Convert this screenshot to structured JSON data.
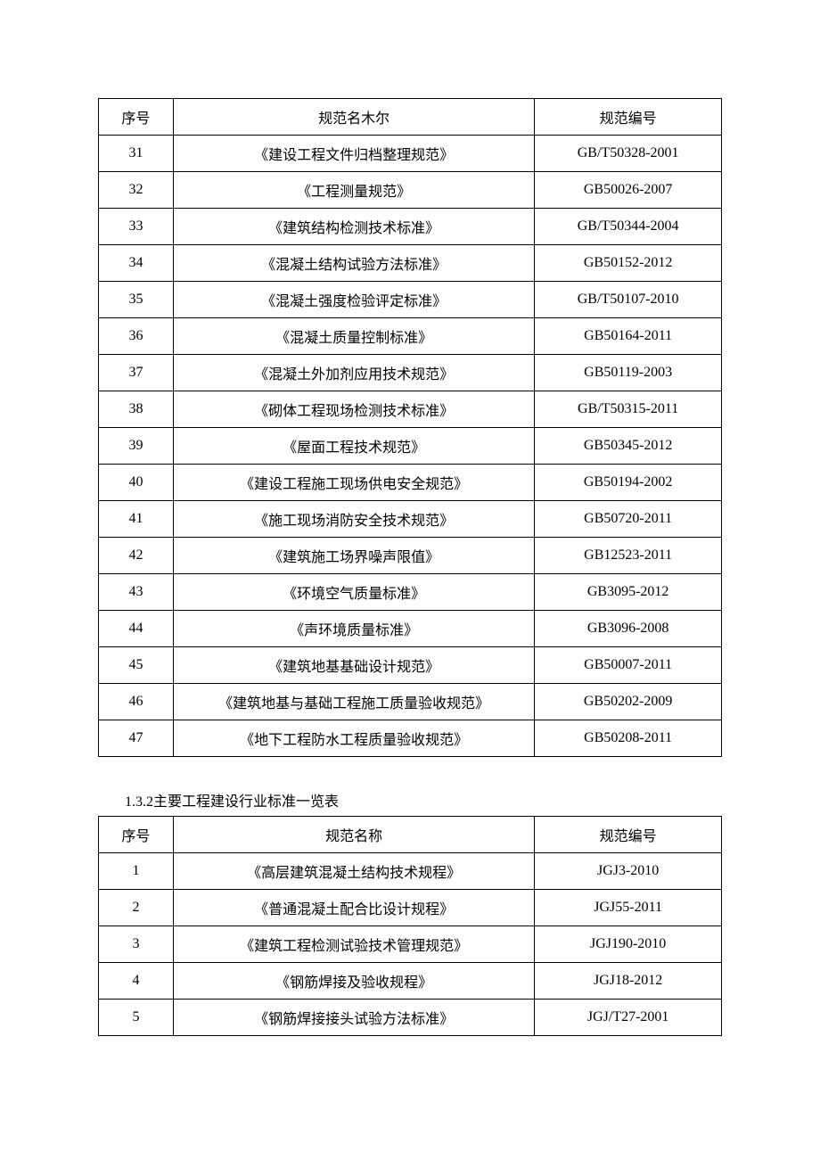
{
  "table1": {
    "headers": {
      "seq": "序号",
      "name": "规范名木尔",
      "code": "规范编号"
    },
    "rows": [
      {
        "seq": "31",
        "name": "《建设工程文件归档整理规范》",
        "code": "GB/T50328-2001"
      },
      {
        "seq": "32",
        "name": "《工程测量规范》",
        "code": "GB50026-2007"
      },
      {
        "seq": "33",
        "name": "《建筑结构检测技术标准》",
        "code": "GB/T50344-2004"
      },
      {
        "seq": "34",
        "name": "《混凝土结构试验方法标准》",
        "code": "GB50152-2012"
      },
      {
        "seq": "35",
        "name": "《混凝土强度检验评定标准》",
        "code": "GB/T50107-2010"
      },
      {
        "seq": "36",
        "name": "《混凝土质量控制标准》",
        "code": "GB50164-2011"
      },
      {
        "seq": "37",
        "name": "《混凝土外加剂应用技术规范》",
        "code": "GB50119-2003"
      },
      {
        "seq": "38",
        "name": "《砌体工程现场检测技术标准》",
        "code": "GB/T50315-2011"
      },
      {
        "seq": "39",
        "name": "《屋面工程技术规范》",
        "code": "GB50345-2012"
      },
      {
        "seq": "40",
        "name": "《建设工程施工现场供电安全规范》",
        "code": "GB50194-2002"
      },
      {
        "seq": "41",
        "name": "《施工现场消防安全技术规范》",
        "code": "GB50720-2011"
      },
      {
        "seq": "42",
        "name": "《建筑施工场界噪声限值》",
        "code": "GB12523-2011"
      },
      {
        "seq": "43",
        "name": "《环境空气质量标准》",
        "code": "GB3095-2012"
      },
      {
        "seq": "44",
        "name": "《声环境质量标准》",
        "code": "GB3096-2008"
      },
      {
        "seq": "45",
        "name": "《建筑地基基础设计规范》",
        "code": "GB50007-2011"
      },
      {
        "seq": "46",
        "name": "《建筑地基与基础工程施工质量验收规范》",
        "code": "GB50202-2009"
      },
      {
        "seq": "47",
        "name": "《地下工程防水工程质量验收规范》",
        "code": "GB50208-2011"
      }
    ]
  },
  "section_heading": "1.3.2主要工程建设行业标准一览表",
  "table2": {
    "headers": {
      "seq": "序号",
      "name": "规范名称",
      "code": "规范编号"
    },
    "rows": [
      {
        "seq": "1",
        "name": "《高层建筑混凝土结构技术规程》",
        "code": "JGJ3-2010"
      },
      {
        "seq": "2",
        "name": "《普通混凝土配合比设计规程》",
        "code": "JGJ55-2011"
      },
      {
        "seq": "3",
        "name": "《建筑工程检测试验技术管理规范》",
        "code": "JGJ190-2010"
      },
      {
        "seq": "4",
        "name": "《钢筋焊接及验收规程》",
        "code": "JGJ18-2012"
      },
      {
        "seq": "5",
        "name": "《钢筋焊接接头试验方法标准》",
        "code": "JGJ/T27-2001"
      }
    ]
  }
}
